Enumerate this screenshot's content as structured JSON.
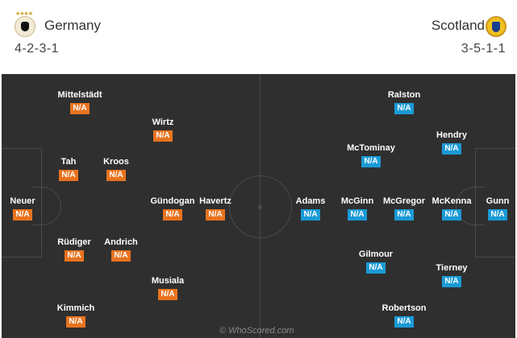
{
  "home": {
    "name": "Germany",
    "formation": "4-2-3-1",
    "players": [
      {
        "name": "Neuer",
        "rating": "N/A"
      },
      {
        "name": "Mittelstädt",
        "rating": "N/A"
      },
      {
        "name": "Tah",
        "rating": "N/A"
      },
      {
        "name": "Rüdiger",
        "rating": "N/A"
      },
      {
        "name": "Kimmich",
        "rating": "N/A"
      },
      {
        "name": "Kroos",
        "rating": "N/A"
      },
      {
        "name": "Andrich",
        "rating": "N/A"
      },
      {
        "name": "Wirtz",
        "rating": "N/A"
      },
      {
        "name": "Gündogan",
        "rating": "N/A"
      },
      {
        "name": "Musiala",
        "rating": "N/A"
      },
      {
        "name": "Havertz",
        "rating": "N/A"
      }
    ]
  },
  "away": {
    "name": "Scotland",
    "formation": "3-5-1-1",
    "players": [
      {
        "name": "Gunn",
        "rating": "N/A"
      },
      {
        "name": "Hendry",
        "rating": "N/A"
      },
      {
        "name": "McKenna",
        "rating": "N/A"
      },
      {
        "name": "Tierney",
        "rating": "N/A"
      },
      {
        "name": "Ralston",
        "rating": "N/A"
      },
      {
        "name": "McTominay",
        "rating": "N/A"
      },
      {
        "name": "McGregor",
        "rating": "N/A"
      },
      {
        "name": "Gilmour",
        "rating": "N/A"
      },
      {
        "name": "Robertson",
        "rating": "N/A"
      },
      {
        "name": "McGinn",
        "rating": "N/A"
      },
      {
        "name": "Adams",
        "rating": "N/A"
      }
    ]
  },
  "colors": {
    "home_rating": "#e8731f",
    "away_rating": "#1a9ad6",
    "pitch": "#2f2f2f"
  },
  "watermark": "© WhoScored.com"
}
